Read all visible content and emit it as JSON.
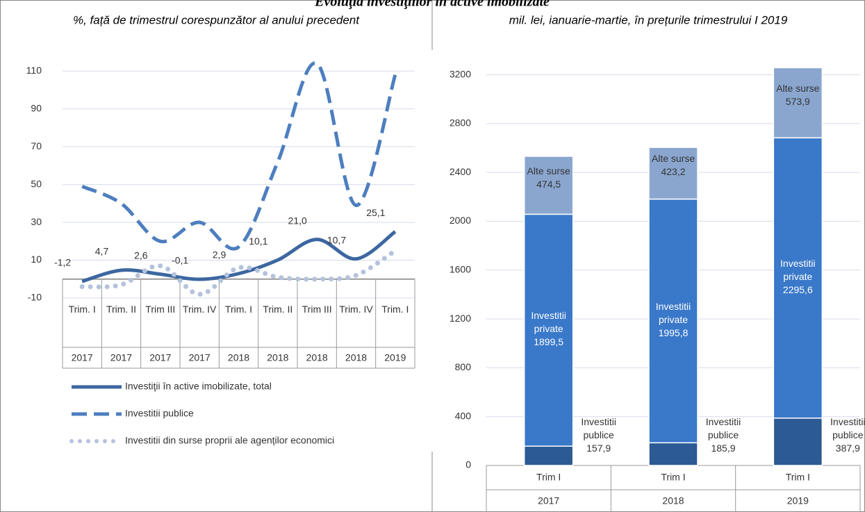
{
  "title": "Evoluţia investiţiilor în active imobilizate",
  "chart_data": [
    {
      "type": "line",
      "subtitle": "%, față  de trimestrul corespunzător al anului precedent",
      "categories": [
        "Trim. I",
        "Trim. II",
        "Trim III",
        "Trim. IV",
        "Trim. I",
        "Trim. II",
        "Trim III",
        "Trim. IV",
        "Trim. I"
      ],
      "years": [
        "2017",
        "2017",
        "2017",
        "2017",
        "2018",
        "2018",
        "2018",
        "2018",
        "2019"
      ],
      "ylim": [
        -10,
        120
      ],
      "yticks": [
        -10,
        10,
        30,
        50,
        70,
        90,
        110
      ],
      "grid": true,
      "legend": "bottom",
      "series": [
        {
          "name": "Investiţii în active imobilizate, total",
          "color": "#3c67a0",
          "style": "solid",
          "values": [
            -1.2,
            4.7,
            2.6,
            -0.1,
            2.9,
            10.1,
            21.0,
            10.7,
            25.1
          ],
          "value_labels": [
            "-1,2",
            "4,7",
            "2,6",
            "-0,1",
            "2,9",
            "10,1",
            "21,0",
            "10,7",
            "25,1"
          ]
        },
        {
          "name": "Investitii publice",
          "color": "#4d7ebf",
          "style": "dashed",
          "values": [
            49,
            40,
            20,
            30,
            17,
            62,
            114,
            39,
            108
          ]
        },
        {
          "name": "Investitii din surse proprii ale agenților economici",
          "color": "#b4c2dd",
          "style": "dotted",
          "values": [
            -4,
            -3,
            7,
            -8,
            6,
            1,
            0,
            2,
            15
          ]
        }
      ]
    },
    {
      "type": "stacked_bar",
      "subtitle": "mil. lei, ianuarie-martie, în prețurile trimestrului I 2019",
      "categories": [
        "Trim I",
        "Trim I",
        "Trim I"
      ],
      "years": [
        "2017",
        "2018",
        "2019"
      ],
      "ylim": [
        0,
        3300
      ],
      "yticks": [
        0,
        400,
        800,
        1200,
        1600,
        2000,
        2400,
        2800,
        3200
      ],
      "grid": true,
      "series": [
        {
          "name": "Investitii publice",
          "color": "#2c5a94",
          "values": [
            157.9,
            185.9,
            387.9
          ],
          "value_labels": [
            "157,9",
            "185,9",
            "387,9"
          ]
        },
        {
          "name": "Investitii private",
          "color": "#3a78c9",
          "values": [
            1899.5,
            1995.8,
            2295.6
          ],
          "value_labels": [
            "1899,5",
            "1995,8",
            "2295,6"
          ]
        },
        {
          "name": "Alte surse",
          "color": "#8aa6cf",
          "values": [
            474.5,
            423.2,
            573.9
          ],
          "value_labels": [
            "474,5",
            "423,2",
            "573,9"
          ]
        }
      ]
    }
  ]
}
